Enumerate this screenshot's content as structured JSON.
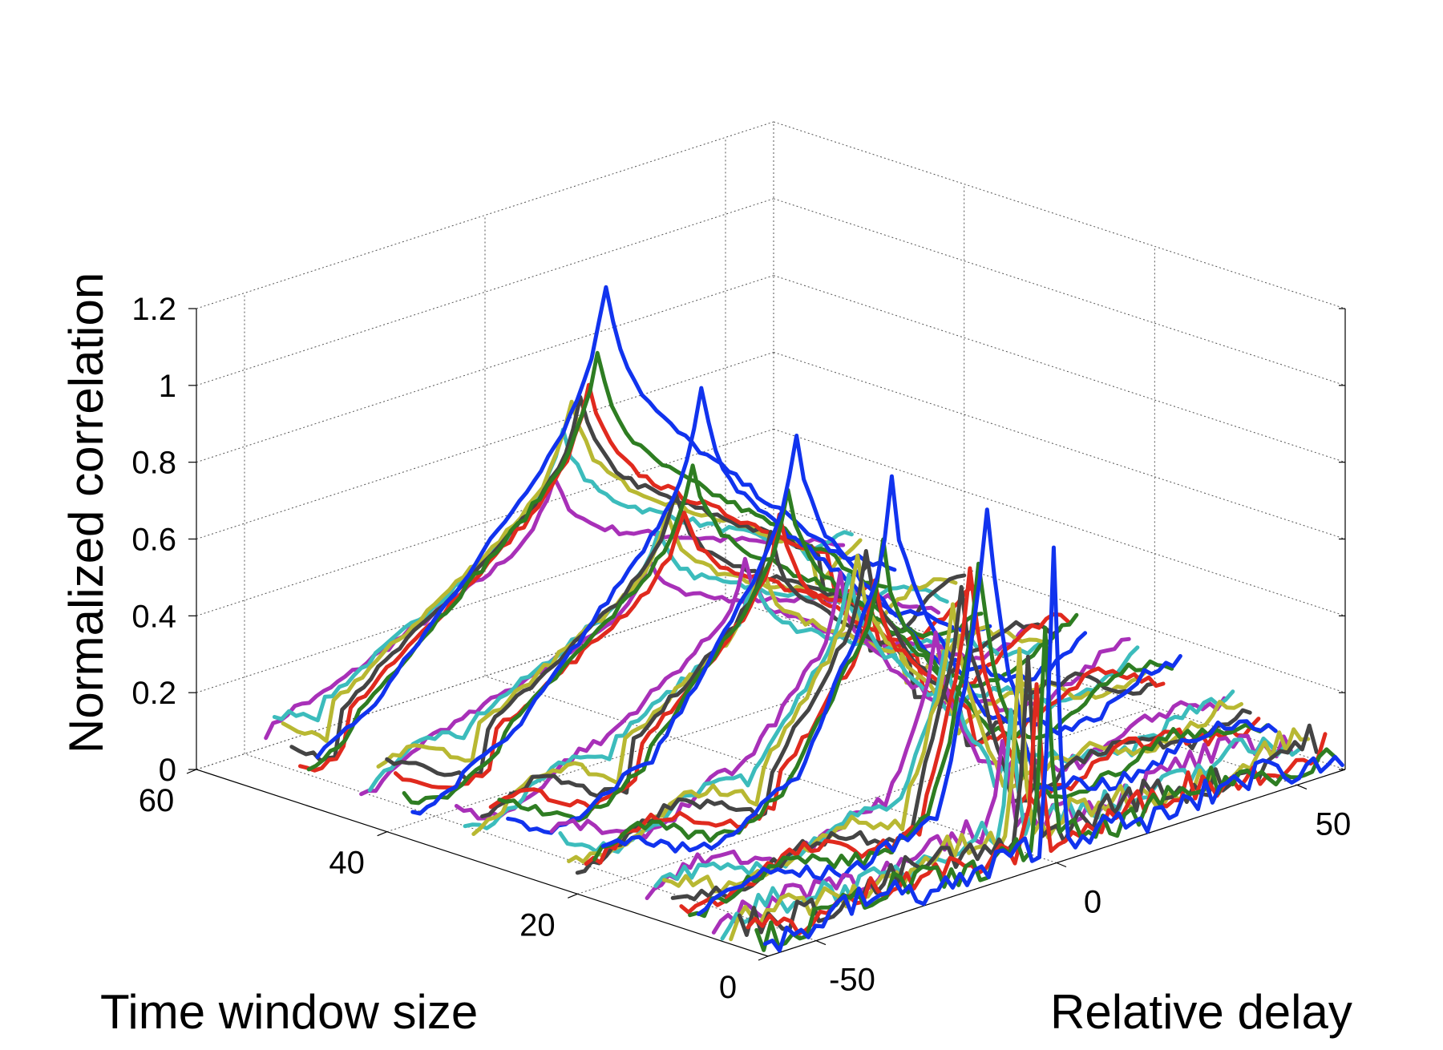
{
  "chart_data": {
    "type": "line",
    "title": "",
    "xlabel": "Time window size",
    "ylabel": "Relative delay",
    "zlabel": "Normalized correlation",
    "xlim": [
      0,
      60
    ],
    "ylim": [
      -60,
      60
    ],
    "zlim": [
      0,
      1.2
    ],
    "x_ticks": [
      0,
      20,
      40,
      60
    ],
    "x_tick_labels": [
      "0",
      "20",
      "40",
      "60"
    ],
    "y_ticks": [
      -50,
      0,
      50
    ],
    "y_tick_labels": [
      "-50",
      "0",
      "50"
    ],
    "z_ticks": [
      0,
      0.2,
      0.4,
      0.6,
      0.8,
      1.0,
      1.2
    ],
    "z_tick_labels": [
      "0",
      "0.2",
      "0.4",
      "0.6",
      "0.8",
      "1",
      "1.2"
    ],
    "grid": true,
    "colors": [
      "#1133ee",
      "#2e7d22",
      "#e02a1e",
      "#444444",
      "#b8b832",
      "#3cbcbc",
      "#a830b8"
    ],
    "groups": [
      {
        "window": 3,
        "halfwidth": 2,
        "baseline": 0.06,
        "noise": 0.04,
        "peaks": [
          0.82,
          0.62,
          0.42,
          0.55,
          0.5,
          0.35,
          0.3
        ]
      },
      {
        "window": 10,
        "halfwidth": 10,
        "baseline": 0.1,
        "noise": 0.02,
        "peaks": [
          0.88,
          0.73,
          0.68,
          0.64,
          0.58,
          0.45,
          0.48
        ]
      },
      {
        "window": 20,
        "halfwidth": 20,
        "baseline": 0.15,
        "noise": 0.015,
        "peaks": [
          0.86,
          0.68,
          0.58,
          0.66,
          0.63,
          0.58,
          0.56
        ]
      },
      {
        "window": 30,
        "halfwidth": 30,
        "baseline": 0.17,
        "noise": 0.012,
        "peaks": [
          0.9,
          0.75,
          0.66,
          0.62,
          0.53,
          0.48,
          0.52
        ]
      },
      {
        "window": 40,
        "halfwidth": 40,
        "baseline": 0.18,
        "noise": 0.01,
        "peaks": [
          0.93,
          0.72,
          0.6,
          0.64,
          0.58,
          0.53,
          0.44
        ]
      },
      {
        "window": 50,
        "halfwidth": 50,
        "baseline": 0.2,
        "noise": 0.01,
        "peaks": [
          1.12,
          0.93,
          0.84,
          0.8,
          0.78,
          0.7,
          0.57
        ]
      }
    ]
  }
}
